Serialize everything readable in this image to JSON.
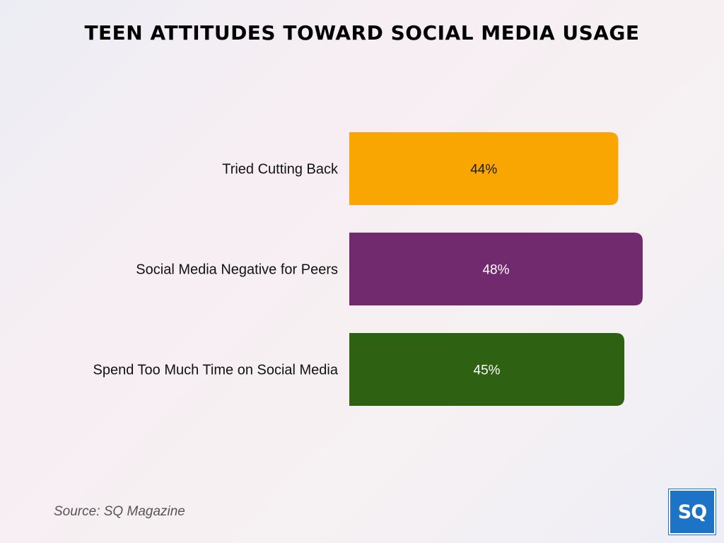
{
  "chart_data": {
    "type": "bar",
    "orientation": "horizontal",
    "title": "TEEN ATTITUDES TOWARD SOCIAL MEDIA USAGE",
    "categories": [
      "Tried Cutting Back",
      "Social Media Negative for Peers",
      "Spend Too Much Time on Social Media"
    ],
    "values": [
      44,
      48,
      45
    ],
    "value_labels": [
      "44%",
      "48%",
      "45%"
    ],
    "colors": [
      "#f9a602",
      "#722a6e",
      "#2f6112"
    ],
    "label_colors": [
      "#1a1a1a",
      "#ffffff",
      "#ffffff"
    ],
    "xlim": [
      0,
      48
    ],
    "grid": false,
    "legend": "none"
  },
  "footer": {
    "source": "Source: SQ Magazine",
    "logo_text": "SQ",
    "logo_color": "#1d74c7"
  }
}
